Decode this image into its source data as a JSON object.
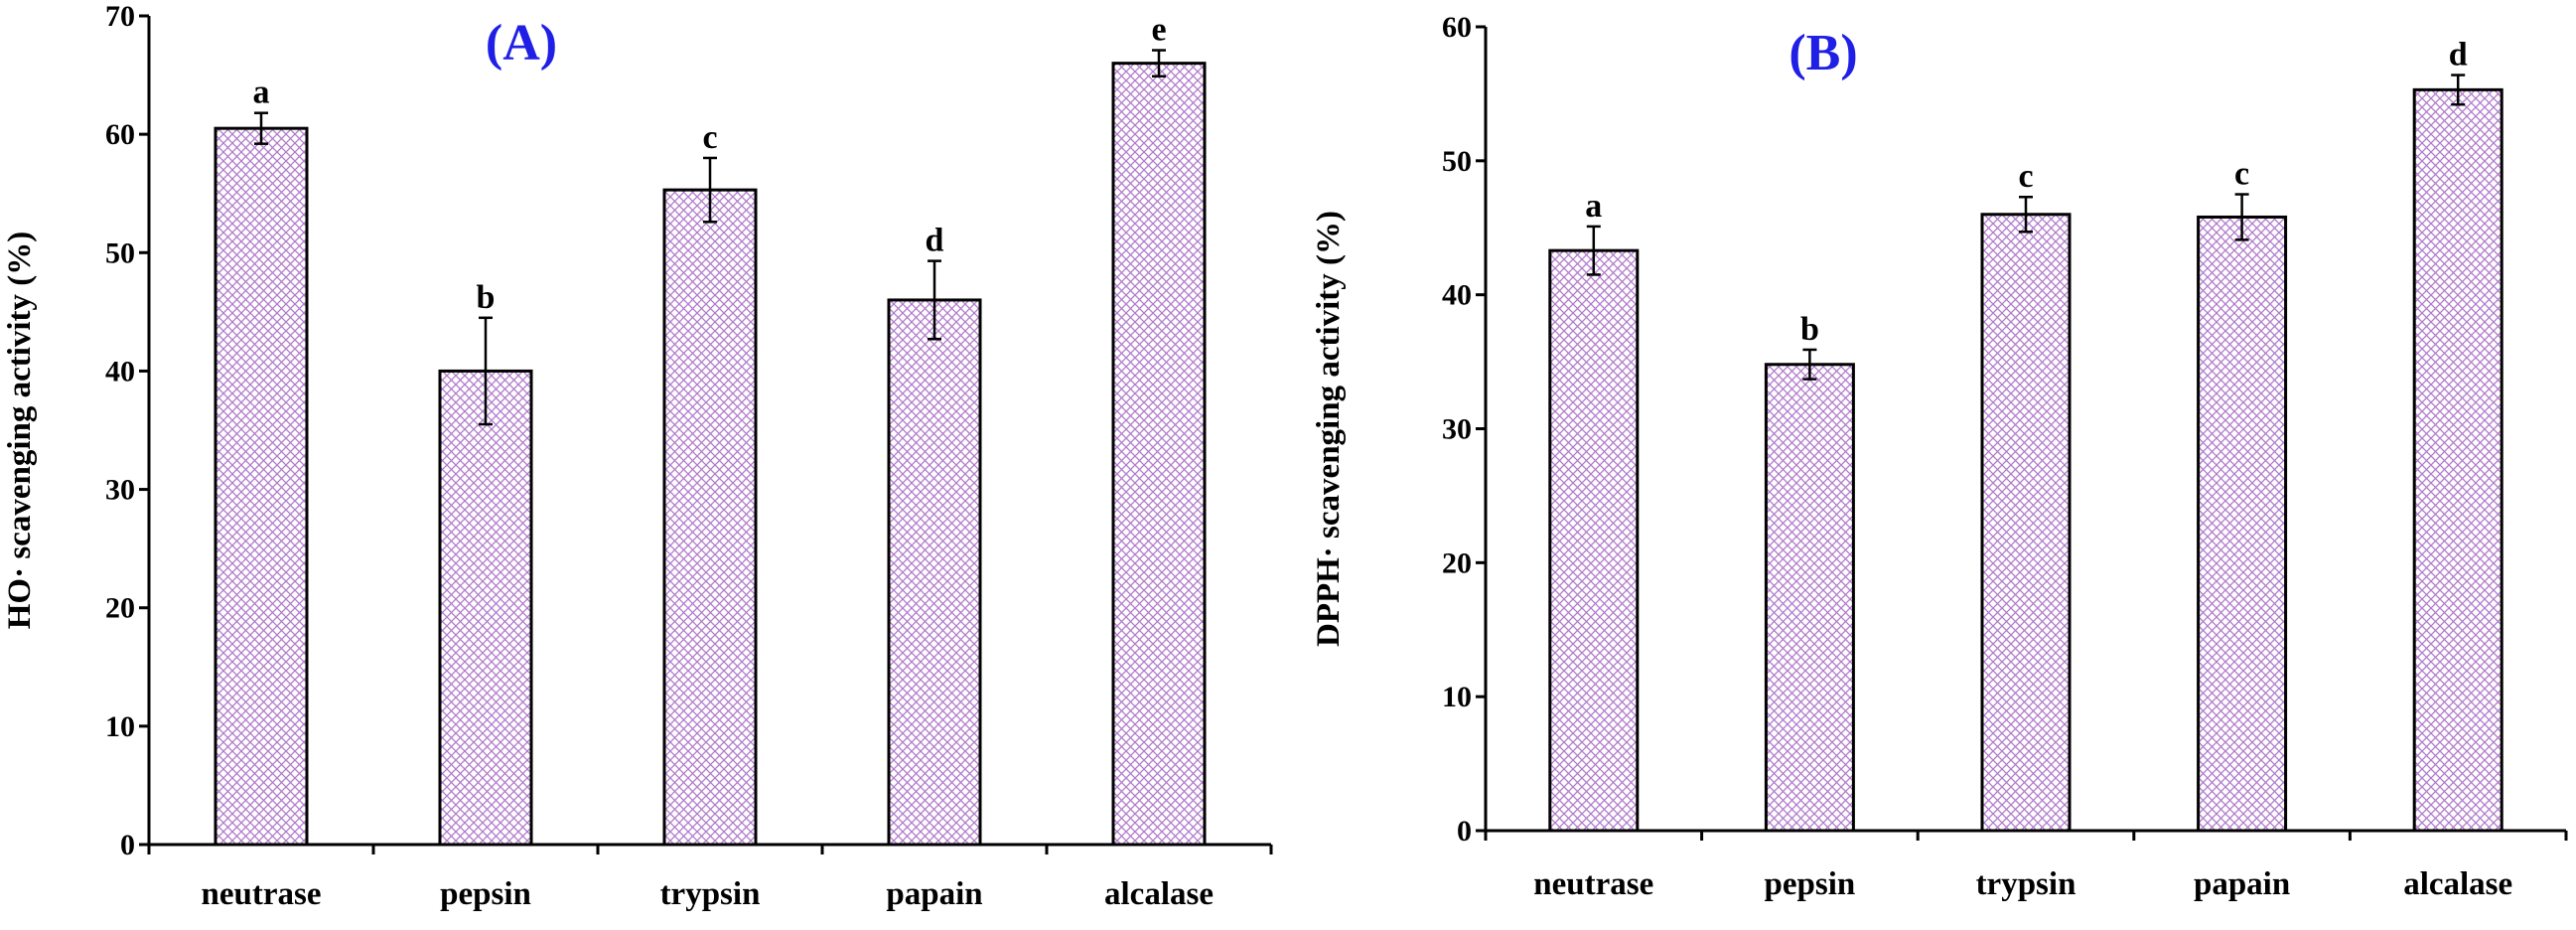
{
  "colors": {
    "hatch": "#B07ACB",
    "panel_label": "#1F1FE6",
    "axis": "#000000"
  },
  "chart_data": [
    {
      "type": "bar",
      "panel_label": "(A)",
      "ylabel": "HO· scavenging activity (%)",
      "xlabel": "",
      "ylim": [
        0,
        70
      ],
      "yticks": [
        0,
        10,
        20,
        30,
        40,
        50,
        60,
        70
      ],
      "categories": [
        "neutrase",
        "pepsin",
        "trypsin",
        "papain",
        "alcalase"
      ],
      "values": [
        60.5,
        40.0,
        55.3,
        46.0,
        66.0
      ],
      "errors": [
        1.3,
        4.5,
        2.7,
        3.3,
        1.1
      ],
      "significance": [
        "a",
        "b",
        "c",
        "d",
        "e"
      ],
      "grid": false
    },
    {
      "type": "bar",
      "panel_label": "(B)",
      "ylabel": "DPPH· scavenging activity (%)",
      "xlabel": "",
      "ylim": [
        0,
        60
      ],
      "yticks": [
        0,
        10,
        20,
        30,
        40,
        50,
        60
      ],
      "categories": [
        "neutrase",
        "pepsin",
        "trypsin",
        "papain",
        "alcalase"
      ],
      "values": [
        43.3,
        34.8,
        46.0,
        45.8,
        55.3
      ],
      "errors": [
        1.8,
        1.1,
        1.3,
        1.7,
        1.1
      ],
      "significance": [
        "a",
        "b",
        "c",
        "c",
        "d"
      ],
      "grid": false
    }
  ]
}
